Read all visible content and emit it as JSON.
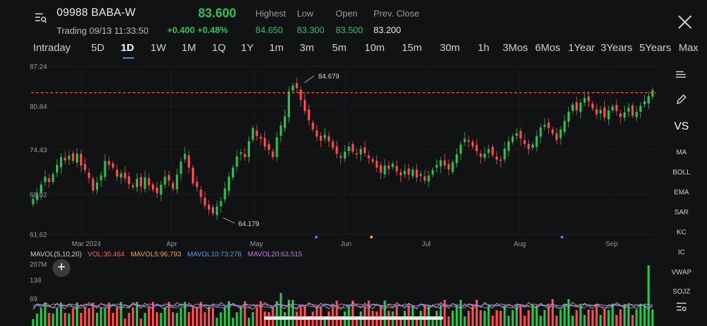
{
  "header": {
    "symbol": "09988 BABA-W",
    "price": "83.600",
    "trading_status": "Trading 09/13 11:33:50",
    "change": "+0.400 +0.48%",
    "stats": [
      {
        "label": "Highest",
        "value": "84.650",
        "color": "#27c44f"
      },
      {
        "label": "Low",
        "value": "83.300",
        "color": "#27c44f"
      },
      {
        "label": "Open",
        "value": "83.500",
        "color": "#27c44f"
      },
      {
        "label": "Prev. Close",
        "value": "83.200",
        "color": "#ececec"
      }
    ]
  },
  "tabs": [
    "Intraday",
    "5D",
    "1D",
    "1W",
    "1M",
    "1Q",
    "1Y",
    "1m",
    "3m",
    "5m",
    "10m",
    "15m",
    "30m",
    "1h",
    "3Mos",
    "6Mos",
    "1Year",
    "3Years",
    "5Years",
    "Max"
  ],
  "active_tab": "1D",
  "side_panel": {
    "indicators": [
      "MA",
      "BOLL",
      "EMA",
      "SAR",
      "KC",
      "IC",
      "VWAP",
      "SOJZ"
    ],
    "vs_label": "VS"
  },
  "chart_data": {
    "type": "candlestick",
    "y_ticks": [
      "87.24",
      "80.84",
      "74.43",
      "68.02",
      "61.62"
    ],
    "x_labels": [
      "Mar 2024",
      "Apr",
      "May",
      "Jun",
      "Jul",
      "Aug",
      "Sep"
    ],
    "high_annotation": "84.679",
    "low_annotation": "64.179",
    "ref_price": 83.2,
    "ylim": [
      61.62,
      87.24
    ],
    "closes": [
      67.0,
      67.8,
      69.2,
      70.4,
      69.6,
      70.8,
      72.2,
      73.4,
      72.9,
      73.6,
      72.8,
      73.9,
      72.1,
      71.4,
      70.2,
      68.3,
      69.5,
      70.6,
      72.8,
      72.2,
      71.8,
      70.4,
      70.9,
      70.1,
      69.3,
      68.8,
      70.1,
      68.9,
      70.3,
      69.1,
      68.4,
      67.9,
      69.2,
      70.4,
      69.8,
      68.6,
      70.7,
      72.7,
      73.9,
      71.8,
      69.4,
      68.8,
      67.3,
      66.0,
      65.4,
      64.8,
      65.9,
      66.7,
      68.6,
      70.4,
      71.8,
      73.5,
      74.1,
      73.4,
      75.8,
      77.8,
      76.6,
      76.2,
      75.0,
      74.5,
      73.4,
      76.4,
      78.2,
      79.6,
      83.4,
      84.3,
      83.9,
      82.1,
      80.4,
      79.0,
      77.6,
      76.5,
      75.9,
      76.8,
      75.8,
      74.8,
      73.9,
      73.3,
      74.2,
      75.0,
      74.2,
      73.8,
      74.6,
      74.0,
      73.2,
      72.7,
      71.8,
      71.0,
      72.1,
      71.6,
      72.4,
      71.2,
      70.6,
      71.3,
      70.7,
      71.5,
      70.3,
      70.8,
      69.8,
      70.6,
      71.4,
      72.2,
      72.9,
      72.1,
      71.5,
      72.6,
      73.8,
      75.3,
      76.2,
      75.7,
      75.0,
      74.3,
      73.4,
      73.9,
      74.6,
      73.7,
      73.0,
      72.8,
      74.7,
      75.8,
      76.5,
      77.0,
      76.2,
      75.4,
      74.6,
      75.3,
      76.6,
      77.9,
      78.3,
      77.8,
      77.0,
      76.0,
      77.6,
      78.9,
      80.3,
      81.4,
      80.5,
      81.7,
      82.4,
      81.9,
      80.8,
      79.9,
      80.6,
      79.4,
      80.5,
      81.1,
      80.4,
      79.5,
      80.2,
      80.9,
      79.7,
      80.3,
      81.2,
      81.9,
      82.7,
      83.6
    ]
  },
  "volume": {
    "mavol_title": "MAVOL(5,10,20)",
    "vol": "VOL:30.464",
    "mavol5": "MAVOL5:96.793",
    "mavol10": "MAVOL10:73.278",
    "mavol20": "MAVOL20:63.515",
    "y_ticks": [
      "207M",
      "138",
      "69"
    ],
    "colors": {
      "vol": "#ff5a5a",
      "mavol5": "#f5a623",
      "mavol10": "#3aa0ff",
      "mavol20": "#d66bff"
    }
  },
  "colors": {
    "up": "#27c44f",
    "down": "#ff4d4f",
    "ref_line": "#ff6a1a"
  }
}
